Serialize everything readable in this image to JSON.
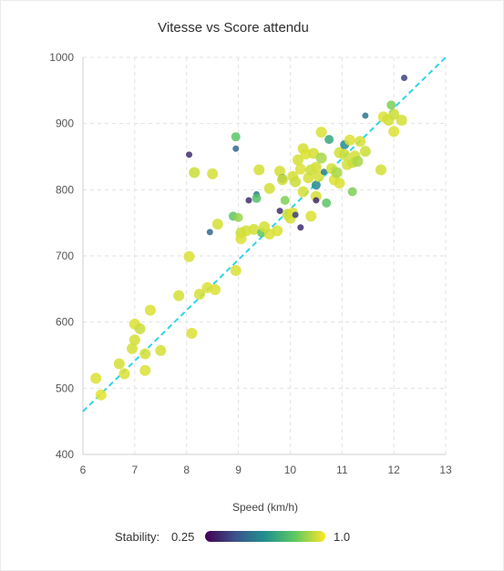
{
  "chart_data": {
    "type": "scatter",
    "title": "Vitesse vs Score attendu",
    "xlabel": "Speed (km/h)",
    "ylabel": "",
    "xlim": [
      6,
      13
    ],
    "ylim": [
      400,
      1000
    ],
    "x_ticks": [
      "6",
      "7",
      "8",
      "9",
      "10",
      "11",
      "12",
      "13"
    ],
    "y_ticks": [
      "400",
      "500",
      "600",
      "700",
      "800",
      "900",
      "1000"
    ],
    "grid": true,
    "trend_line": {
      "x": [
        6,
        13
      ],
      "y": [
        465,
        1000
      ],
      "color": "#2dd4e8",
      "style": "dashed"
    },
    "color_scale": {
      "name": "viridis",
      "min_label": "0.25",
      "max_label": "1.0",
      "min": 0.25,
      "max": 1.0
    },
    "legend": {
      "label": "Stability:",
      "placement": "bottom-left"
    },
    "points": [
      {
        "x": 6.25,
        "y": 515,
        "s": 0.96
      },
      {
        "x": 6.35,
        "y": 490,
        "s": 0.97
      },
      {
        "x": 6.7,
        "y": 537,
        "s": 0.95
      },
      {
        "x": 6.8,
        "y": 522,
        "s": 0.96
      },
      {
        "x": 6.95,
        "y": 560,
        "s": 0.95
      },
      {
        "x": 7.0,
        "y": 597,
        "s": 0.96
      },
      {
        "x": 7.0,
        "y": 573,
        "s": 0.95
      },
      {
        "x": 7.1,
        "y": 590,
        "s": 0.94
      },
      {
        "x": 7.2,
        "y": 527,
        "s": 0.96
      },
      {
        "x": 7.2,
        "y": 552,
        "s": 0.95
      },
      {
        "x": 7.3,
        "y": 618,
        "s": 0.96
      },
      {
        "x": 7.5,
        "y": 557,
        "s": 0.95
      },
      {
        "x": 7.85,
        "y": 640,
        "s": 0.95
      },
      {
        "x": 8.05,
        "y": 853,
        "s": 0.35
      },
      {
        "x": 8.05,
        "y": 699,
        "s": 0.96
      },
      {
        "x": 8.1,
        "y": 583,
        "s": 0.96
      },
      {
        "x": 8.15,
        "y": 826,
        "s": 0.94
      },
      {
        "x": 8.25,
        "y": 642,
        "s": 0.95
      },
      {
        "x": 8.4,
        "y": 652,
        "s": 0.96
      },
      {
        "x": 8.45,
        "y": 736,
        "s": 0.5
      },
      {
        "x": 8.5,
        "y": 824,
        "s": 0.95
      },
      {
        "x": 8.55,
        "y": 649,
        "s": 0.96
      },
      {
        "x": 8.6,
        "y": 748,
        "s": 0.95
      },
      {
        "x": 8.9,
        "y": 760,
        "s": 0.8
      },
      {
        "x": 8.95,
        "y": 880,
        "s": 0.8
      },
      {
        "x": 8.95,
        "y": 862,
        "s": 0.5
      },
      {
        "x": 8.95,
        "y": 678,
        "s": 0.96
      },
      {
        "x": 9.0,
        "y": 758,
        "s": 0.88
      },
      {
        "x": 9.05,
        "y": 735,
        "s": 0.94
      },
      {
        "x": 9.05,
        "y": 726,
        "s": 0.96
      },
      {
        "x": 9.15,
        "y": 738,
        "s": 0.95
      },
      {
        "x": 9.2,
        "y": 784,
        "s": 0.35
      },
      {
        "x": 9.3,
        "y": 740,
        "s": 0.95
      },
      {
        "x": 9.35,
        "y": 793,
        "s": 0.55
      },
      {
        "x": 9.35,
        "y": 787,
        "s": 0.78
      },
      {
        "x": 9.4,
        "y": 830,
        "s": 0.95
      },
      {
        "x": 9.45,
        "y": 735,
        "s": 0.8
      },
      {
        "x": 9.5,
        "y": 744,
        "s": 0.95
      },
      {
        "x": 9.6,
        "y": 733,
        "s": 0.96
      },
      {
        "x": 9.6,
        "y": 802,
        "s": 0.95
      },
      {
        "x": 9.75,
        "y": 738,
        "s": 0.96
      },
      {
        "x": 9.8,
        "y": 828,
        "s": 0.95
      },
      {
        "x": 9.8,
        "y": 768,
        "s": 0.35
      },
      {
        "x": 9.85,
        "y": 817,
        "s": 0.6
      },
      {
        "x": 9.85,
        "y": 815,
        "s": 0.95
      },
      {
        "x": 9.9,
        "y": 784,
        "s": 0.85
      },
      {
        "x": 9.95,
        "y": 763,
        "s": 0.94
      },
      {
        "x": 10.0,
        "y": 757,
        "s": 0.95
      },
      {
        "x": 10.05,
        "y": 765,
        "s": 0.96
      },
      {
        "x": 10.05,
        "y": 820,
        "s": 0.95
      },
      {
        "x": 10.1,
        "y": 812,
        "s": 0.94
      },
      {
        "x": 10.1,
        "y": 762,
        "s": 0.4
      },
      {
        "x": 10.15,
        "y": 845,
        "s": 0.95
      },
      {
        "x": 10.2,
        "y": 831,
        "s": 0.96
      },
      {
        "x": 10.2,
        "y": 743,
        "s": 0.35
      },
      {
        "x": 10.25,
        "y": 862,
        "s": 0.95
      },
      {
        "x": 10.25,
        "y": 797,
        "s": 0.95
      },
      {
        "x": 10.3,
        "y": 854,
        "s": 0.96
      },
      {
        "x": 10.35,
        "y": 818,
        "s": 0.95
      },
      {
        "x": 10.4,
        "y": 760,
        "s": 0.96
      },
      {
        "x": 10.4,
        "y": 830,
        "s": 0.94
      },
      {
        "x": 10.45,
        "y": 855,
        "s": 0.95
      },
      {
        "x": 10.5,
        "y": 834,
        "s": 0.95
      },
      {
        "x": 10.5,
        "y": 807,
        "s": 0.6
      },
      {
        "x": 10.5,
        "y": 790,
        "s": 0.95
      },
      {
        "x": 10.5,
        "y": 784,
        "s": 0.35
      },
      {
        "x": 10.55,
        "y": 820,
        "s": 0.95
      },
      {
        "x": 10.6,
        "y": 887,
        "s": 0.96
      },
      {
        "x": 10.6,
        "y": 848,
        "s": 0.9
      },
      {
        "x": 10.65,
        "y": 827,
        "s": 0.55
      },
      {
        "x": 10.7,
        "y": 780,
        "s": 0.8
      },
      {
        "x": 10.75,
        "y": 876,
        "s": 0.7
      },
      {
        "x": 10.8,
        "y": 832,
        "s": 0.95
      },
      {
        "x": 10.85,
        "y": 815,
        "s": 0.96
      },
      {
        "x": 10.9,
        "y": 826,
        "s": 0.9
      },
      {
        "x": 10.95,
        "y": 810,
        "s": 0.96
      },
      {
        "x": 10.95,
        "y": 856,
        "s": 0.95
      },
      {
        "x": 11.05,
        "y": 853,
        "s": 0.94
      },
      {
        "x": 11.05,
        "y": 868,
        "s": 0.6
      },
      {
        "x": 11.1,
        "y": 838,
        "s": 0.95
      },
      {
        "x": 11.15,
        "y": 875,
        "s": 0.96
      },
      {
        "x": 11.2,
        "y": 797,
        "s": 0.85
      },
      {
        "x": 11.2,
        "y": 841,
        "s": 0.94
      },
      {
        "x": 11.25,
        "y": 851,
        "s": 0.95
      },
      {
        "x": 11.3,
        "y": 843,
        "s": 0.9
      },
      {
        "x": 11.35,
        "y": 873,
        "s": 0.95
      },
      {
        "x": 11.45,
        "y": 912,
        "s": 0.55
      },
      {
        "x": 11.45,
        "y": 858,
        "s": 0.94
      },
      {
        "x": 11.75,
        "y": 830,
        "s": 0.95
      },
      {
        "x": 11.8,
        "y": 910,
        "s": 0.96
      },
      {
        "x": 11.9,
        "y": 905,
        "s": 0.95
      },
      {
        "x": 11.95,
        "y": 928,
        "s": 0.85
      },
      {
        "x": 12.0,
        "y": 888,
        "s": 0.96
      },
      {
        "x": 12.0,
        "y": 914,
        "s": 0.94
      },
      {
        "x": 12.15,
        "y": 905,
        "s": 0.95
      },
      {
        "x": 12.2,
        "y": 969,
        "s": 0.4
      }
    ]
  }
}
